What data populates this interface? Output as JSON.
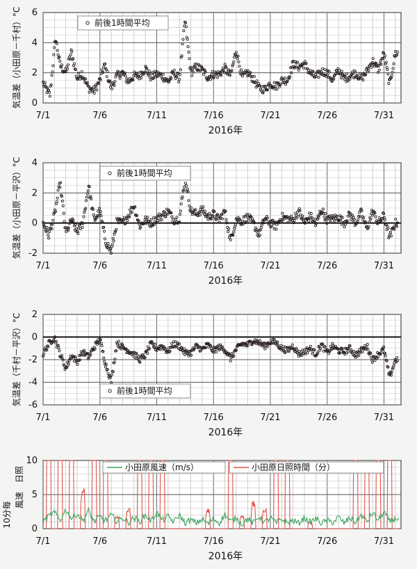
{
  "chart_data": [
    {
      "type": "scatter",
      "ylabel": "気温差（小田原－千村）°C",
      "xlabel": "2016年",
      "legend": "前後1時間平均",
      "legend_position": "top-left",
      "ylim": [
        0,
        6
      ],
      "yticks": [
        "0",
        "2",
        "4",
        "6"
      ],
      "xticks": [
        "7/1",
        "7/6",
        "7/11",
        "7/16",
        "7/21",
        "7/26",
        "7/31"
      ],
      "grid": true,
      "series_kx": [
        1.0,
        1.6,
        2.1,
        2.5,
        3.0,
        3.5,
        4.0,
        4.4,
        5.0,
        5.5,
        6.0,
        6.4,
        7.0,
        7.5,
        8.0,
        8.5,
        9.0,
        9.5,
        10.0,
        10.5,
        11.0,
        11.5,
        12.0,
        12.5,
        13.0,
        13.5,
        14.0,
        14.5,
        15.0,
        15.5,
        16.0,
        16.5,
        17.0,
        17.5,
        18.0,
        18.5,
        19.0,
        19.5,
        20.0,
        20.5,
        21.0,
        21.5,
        22.0,
        22.5,
        23.0,
        23.5,
        24.0,
        24.5,
        25.0,
        25.5,
        26.0,
        26.5,
        27.0,
        27.5,
        28.0,
        28.5,
        29.0,
        29.5,
        30.0,
        30.5,
        31.0,
        31.5,
        32.0
      ],
      "series_ky": [
        1.3,
        0.5,
        4.3,
        2.5,
        2.0,
        3.4,
        1.6,
        2.0,
        1.0,
        0.8,
        1.5,
        2.5,
        1.0,
        1.8,
        2.0,
        1.4,
        1.8,
        1.8,
        2.3,
        1.7,
        1.9,
        1.8,
        1.4,
        2.0,
        1.6,
        5.5,
        2.0,
        2.4,
        2.2,
        1.7,
        1.9,
        1.9,
        2.3,
        1.8,
        3.5,
        1.7,
        2.0,
        1.6,
        1.0,
        0.9,
        1.3,
        1.1,
        1.5,
        1.5,
        2.6,
        2.4,
        2.6,
        2.0,
        1.7,
        2.1,
        2.0,
        1.5,
        2.2,
        1.6,
        1.8,
        2.0,
        1.6,
        2.1,
        2.8,
        2.2,
        3.3,
        1.2,
        3.3
      ]
    },
    {
      "type": "scatter",
      "ylabel": "気温差（小田原－平沢）°C",
      "xlabel": "2016年",
      "legend": "前後1時間平均",
      "legend_position": "top-left",
      "ylim": [
        -2,
        4
      ],
      "yticks": [
        "-2",
        "0",
        "2",
        "4"
      ],
      "xticks": [
        "7/1",
        "7/6",
        "7/11",
        "7/16",
        "7/21",
        "7/26",
        "7/31"
      ],
      "grid": true,
      "series_kx": [
        1.0,
        1.5,
        2.0,
        2.5,
        3.0,
        3.5,
        4.0,
        4.5,
        5.0,
        5.5,
        6.0,
        6.5,
        7.0,
        7.5,
        8.0,
        8.5,
        9.0,
        9.5,
        10.0,
        10.5,
        11.0,
        11.5,
        12.0,
        12.5,
        13.0,
        13.5,
        14.0,
        14.5,
        15.0,
        15.5,
        16.0,
        16.5,
        17.0,
        17.5,
        18.0,
        18.5,
        19.0,
        19.5,
        20.0,
        20.5,
        21.0,
        21.5,
        22.0,
        22.5,
        23.0,
        23.5,
        24.0,
        24.5,
        25.0,
        25.5,
        26.0,
        26.5,
        27.0,
        27.5,
        28.0,
        28.5,
        29.0,
        29.5,
        30.0,
        30.5,
        31.0,
        31.5,
        32.0
      ],
      "series_ky": [
        0.0,
        -0.8,
        0.5,
        2.7,
        -0.7,
        0.2,
        -0.6,
        0.0,
        2.5,
        0.2,
        0.8,
        -1.2,
        -1.9,
        0.1,
        0.0,
        0.5,
        1.2,
        -0.2,
        0.2,
        0.0,
        0.3,
        0.5,
        0.8,
        0.2,
        0.3,
        3.0,
        0.8,
        0.6,
        0.9,
        0.4,
        0.6,
        0.2,
        0.8,
        -1.2,
        0.3,
        0.1,
        0.4,
        0.0,
        -0.8,
        0.3,
        0.0,
        -0.2,
        0.4,
        0.3,
        0.2,
        0.8,
        0.0,
        0.5,
        -0.1,
        0.9,
        0.2,
        0.3,
        0.4,
        0.0,
        0.6,
        0.0,
        0.7,
        -0.4,
        0.8,
        0.0,
        0.5,
        -1.0,
        0.0
      ]
    },
    {
      "type": "scatter",
      "ylabel": "気温差（千村－平沢）°C",
      "xlabel": "2016年",
      "legend": "前後1時間平均",
      "legend_position": "bottom-left",
      "ylim": [
        -6,
        2
      ],
      "yticks": [
        "-6",
        "-4",
        "-2",
        "0",
        "2"
      ],
      "xticks": [
        "7/1",
        "7/6",
        "7/11",
        "7/16",
        "7/21",
        "7/26",
        "7/31"
      ],
      "grid": true,
      "series_kx": [
        1.0,
        1.5,
        2.0,
        2.5,
        3.0,
        3.5,
        4.0,
        4.5,
        5.0,
        5.5,
        6.0,
        6.5,
        7.0,
        7.5,
        8.0,
        8.5,
        9.0,
        9.5,
        10.0,
        10.5,
        11.0,
        11.5,
        12.0,
        12.5,
        13.0,
        13.5,
        14.0,
        14.5,
        15.0,
        15.5,
        16.0,
        16.5,
        17.0,
        17.5,
        18.0,
        18.5,
        19.0,
        19.5,
        20.0,
        20.5,
        21.0,
        21.5,
        22.0,
        22.5,
        23.0,
        23.5,
        24.0,
        24.5,
        25.0,
        25.5,
        26.0,
        26.5,
        27.0,
        27.5,
        28.0,
        28.5,
        29.0,
        29.5,
        30.0,
        30.5,
        31.0,
        31.5,
        32.0
      ],
      "series_ky": [
        -1.5,
        -0.6,
        0.0,
        -1.5,
        -2.8,
        -1.6,
        -2.2,
        -1.3,
        -1.8,
        -0.9,
        -0.2,
        -2.4,
        -3.9,
        -0.5,
        -0.9,
        -1.2,
        -1.5,
        -2.0,
        -1.6,
        -0.6,
        -1.0,
        -0.8,
        -1.3,
        -0.6,
        -0.8,
        -1.4,
        -1.4,
        -0.8,
        -1.1,
        -0.7,
        -1.2,
        -0.9,
        -1.1,
        -1.9,
        -1.1,
        -0.6,
        -0.7,
        -0.3,
        -0.5,
        -0.8,
        -0.4,
        -0.5,
        -1.0,
        -1.2,
        -0.8,
        -1.5,
        -1.3,
        -1.0,
        -1.5,
        -0.7,
        -1.4,
        -0.8,
        -1.2,
        -1.3,
        -1.0,
        -1.6,
        -1.2,
        -0.8,
        -2.0,
        -1.5,
        -1.1,
        -3.6,
        -2.0
      ]
    },
    {
      "type": "line",
      "ylabel_left": "10分毎",
      "ylabel_mid": "風速",
      "ylabel_right": "日照",
      "xlabel": "2016年",
      "legend_position": "top",
      "ylim": [
        0,
        10
      ],
      "yticks": [
        "0",
        "5",
        "10"
      ],
      "xticks": [
        "7/1",
        "7/6",
        "7/11",
        "7/16",
        "7/21",
        "7/26",
        "7/31"
      ],
      "grid": true,
      "series": [
        {
          "name": "小田原風速（m/s）",
          "color": "#3aa45c",
          "kx": [
            1.0,
            1.5,
            2.0,
            2.5,
            3.0,
            3.5,
            4.0,
            4.5,
            5.0,
            5.5,
            6.0,
            6.5,
            7.0,
            7.5,
            8.0,
            8.5,
            9.0,
            9.5,
            10.0,
            10.5,
            11.0,
            11.5,
            12.0,
            12.5,
            13.0,
            13.5,
            14.0,
            14.5,
            15.0,
            15.5,
            16.0,
            16.5,
            17.0,
            17.5,
            18.0,
            18.5,
            19.0,
            19.5,
            20.0,
            20.5,
            21.0,
            21.5,
            22.0,
            22.5,
            23.0,
            23.5,
            24.0,
            24.5,
            25.0,
            25.5,
            26.0,
            26.5,
            27.0,
            27.5,
            28.0,
            28.5,
            29.0,
            29.5,
            30.0,
            30.5,
            31.0,
            31.5,
            32.0
          ],
          "ky": [
            1.0,
            1.8,
            2.4,
            1.2,
            2.8,
            1.5,
            2.2,
            1.2,
            2.6,
            1.0,
            1.8,
            1.2,
            2.0,
            1.0,
            1.6,
            0.9,
            1.6,
            1.0,
            2.0,
            1.1,
            2.4,
            1.2,
            1.8,
            1.0,
            2.0,
            0.8,
            1.3,
            0.8,
            1.4,
            0.7,
            1.5,
            0.8,
            2.1,
            1.0,
            1.6,
            0.6,
            1.5,
            0.8,
            1.8,
            0.9,
            1.6,
            0.8,
            1.4,
            0.8,
            1.2,
            0.8,
            1.6,
            0.9,
            1.5,
            0.8,
            1.2,
            0.9,
            1.7,
            0.8,
            1.6,
            0.9,
            2.0,
            1.0,
            2.3,
            1.2,
            2.5,
            1.0,
            1.5
          ]
        },
        {
          "name": "小田原日照時間（分）",
          "color": "#e0524b",
          "day_peaks": [
            10,
            10,
            10,
            6,
            10,
            10,
            2,
            3,
            10,
            10,
            10,
            0,
            0,
            0,
            3,
            0,
            10,
            2,
            4,
            3,
            10,
            10,
            0,
            1,
            0,
            0,
            0,
            10,
            9,
            10,
            10
          ]
        }
      ]
    }
  ]
}
